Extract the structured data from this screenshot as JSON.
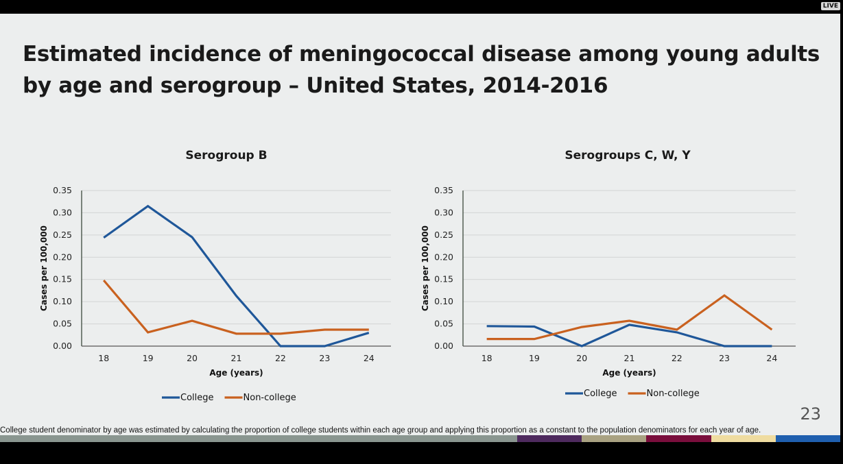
{
  "window": {
    "live_badge": "LIVE"
  },
  "slide": {
    "title_line1": "Estimated incidence of meningococcal disease among young adults",
    "title_line2": "by age and serogroup – United States, 2014-2016",
    "footnote": "College student denominator by age was estimated by calculating the proportion of college students within each age group and applying this proportion as a constant to the population denominators for each year of age.",
    "page_number": "23",
    "color_bar": [
      "#8a9690",
      "#8a9690",
      "#8a9690",
      "#8a9690",
      "#8a9690",
      "#8a9690",
      "#8a9690",
      "#8a9690",
      "#4e2a5e",
      "#a9a282",
      "#7a0e3c",
      "#efdca0",
      "#1f5fae"
    ]
  },
  "chart_data": [
    {
      "type": "line",
      "title": "Serogroup B",
      "xlabel": "Age (years)",
      "ylabel": "Cases per 100,000",
      "categories": [
        "18",
        "19",
        "20",
        "21",
        "22",
        "23",
        "24"
      ],
      "ylim": [
        0,
        0.35
      ],
      "yticks": [
        "0.00",
        "0.05",
        "0.10",
        "0.15",
        "0.20",
        "0.25",
        "0.30",
        "0.35"
      ],
      "grid": true,
      "legend_position": "bottom",
      "series": [
        {
          "name": "College",
          "color": "#1f5799",
          "values": [
            0.244,
            0.315,
            0.245,
            0.113,
            0.0,
            0.0,
            0.03
          ]
        },
        {
          "name": "Non-college",
          "color": "#c9611f",
          "values": [
            0.148,
            0.031,
            0.057,
            0.028,
            0.028,
            0.037,
            0.037
          ]
        }
      ]
    },
    {
      "type": "line",
      "title": "Serogroups C, W, Y",
      "xlabel": "Age (years)",
      "ylabel": "Cases per 100,000",
      "categories": [
        "18",
        "19",
        "20",
        "21",
        "22",
        "23",
        "24"
      ],
      "ylim": [
        0,
        0.35
      ],
      "yticks": [
        "0.00",
        "0.05",
        "0.10",
        "0.15",
        "0.20",
        "0.25",
        "0.30",
        "0.35"
      ],
      "grid": true,
      "legend_position": "bottom",
      "series": [
        {
          "name": "College",
          "color": "#1f5799",
          "values": [
            0.045,
            0.044,
            0.0,
            0.048,
            0.031,
            0.0,
            0.0
          ]
        },
        {
          "name": "Non-college",
          "color": "#c9611f",
          "values": [
            0.016,
            0.016,
            0.043,
            0.057,
            0.037,
            0.114,
            0.037
          ]
        }
      ]
    }
  ]
}
